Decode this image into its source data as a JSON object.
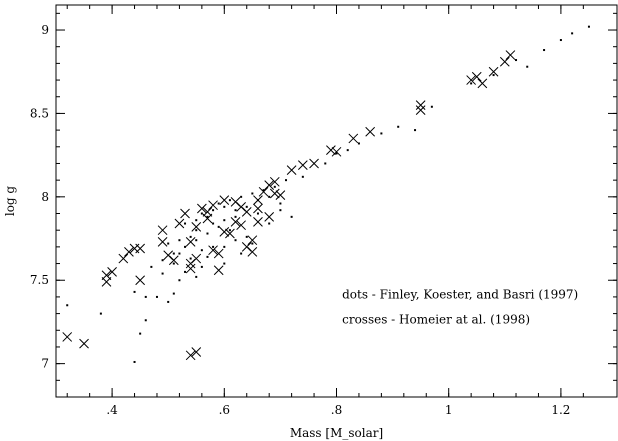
{
  "chart_data": {
    "type": "scatter",
    "title": "",
    "xlabel": "Mass [M_solar]",
    "ylabel": "log g",
    "xlim": [
      0.3,
      1.3
    ],
    "ylim": [
      6.8,
      9.15
    ],
    "xticks": [
      0.4,
      0.6,
      0.8,
      1.0,
      1.2
    ],
    "xtick_labels": [
      ".4",
      ".6",
      ".8",
      "1",
      "1.2"
    ],
    "yticks": [
      7.0,
      7.5,
      8.0,
      8.5,
      9.0
    ],
    "ytick_labels": [
      "7",
      "7.5",
      "8",
      "8.5",
      "9"
    ],
    "grid": false,
    "annotations": [
      {
        "text": "dots - Finley, Koester, and Basri (1997)",
        "x": 0.81,
        "y": 7.39
      },
      {
        "text": "crosses - Homeier at al. (1998)",
        "x": 0.81,
        "y": 7.24
      }
    ],
    "series": [
      {
        "marker": "dot",
        "points": [
          [
            0.32,
            7.35
          ],
          [
            0.38,
            7.3
          ],
          [
            0.44,
            7.01
          ],
          [
            0.45,
            7.18
          ],
          [
            0.46,
            7.26
          ],
          [
            0.44,
            7.43
          ],
          [
            0.46,
            7.4
          ],
          [
            0.48,
            7.4
          ],
          [
            0.5,
            7.37
          ],
          [
            0.51,
            7.42
          ],
          [
            0.52,
            7.5
          ],
          [
            0.53,
            7.55
          ],
          [
            0.55,
            7.52
          ],
          [
            0.47,
            7.58
          ],
          [
            0.49,
            7.62
          ],
          [
            0.51,
            7.6
          ],
          [
            0.52,
            7.66
          ],
          [
            0.54,
            7.63
          ],
          [
            0.56,
            7.68
          ],
          [
            0.58,
            7.7
          ],
          [
            0.5,
            7.72
          ],
          [
            0.52,
            7.74
          ],
          [
            0.54,
            7.76
          ],
          [
            0.55,
            7.8
          ],
          [
            0.57,
            7.78
          ],
          [
            0.59,
            7.82
          ],
          [
            0.61,
            7.8
          ],
          [
            0.53,
            7.84
          ],
          [
            0.55,
            7.86
          ],
          [
            0.57,
            7.88
          ],
          [
            0.58,
            7.84
          ],
          [
            0.6,
            7.86
          ],
          [
            0.62,
            7.88
          ],
          [
            0.56,
            7.9
          ],
          [
            0.58,
            7.92
          ],
          [
            0.6,
            7.94
          ],
          [
            0.62,
            7.92
          ],
          [
            0.64,
            7.94
          ],
          [
            0.59,
            7.96
          ],
          [
            0.61,
            7.98
          ],
          [
            0.63,
            8.0
          ],
          [
            0.65,
            8.02
          ],
          [
            0.67,
            8.04
          ],
          [
            0.66,
            7.98
          ],
          [
            0.68,
            8.0
          ],
          [
            0.7,
            7.96
          ],
          [
            0.69,
            8.06
          ],
          [
            0.71,
            8.1
          ],
          [
            0.72,
            7.88
          ],
          [
            0.74,
            8.12
          ],
          [
            0.6,
            7.7
          ],
          [
            0.62,
            7.74
          ],
          [
            0.64,
            7.76
          ],
          [
            0.57,
            7.64
          ],
          [
            0.6,
            7.6
          ],
          [
            0.63,
            7.66
          ],
          [
            0.65,
            7.72
          ],
          [
            0.53,
            7.7
          ],
          [
            0.55,
            7.74
          ],
          [
            0.56,
            7.58
          ],
          [
            0.49,
            7.54
          ],
          [
            0.51,
            7.66
          ],
          [
            0.66,
            7.9
          ],
          [
            0.68,
            7.84
          ],
          [
            0.7,
            7.92
          ],
          [
            0.78,
            8.2
          ],
          [
            0.8,
            8.26
          ],
          [
            0.82,
            8.28
          ],
          [
            0.84,
            8.32
          ],
          [
            0.88,
            8.38
          ],
          [
            0.91,
            8.42
          ],
          [
            0.94,
            8.4
          ],
          [
            0.97,
            8.54
          ],
          [
            1.04,
            8.68
          ],
          [
            1.08,
            8.73
          ],
          [
            1.12,
            8.82
          ],
          [
            1.14,
            8.78
          ],
          [
            1.17,
            8.88
          ],
          [
            1.2,
            8.94
          ],
          [
            1.22,
            8.98
          ],
          [
            1.25,
            9.02
          ]
        ]
      },
      {
        "marker": "cross",
        "points": [
          [
            0.32,
            7.16
          ],
          [
            0.35,
            7.12
          ],
          [
            0.39,
            7.49
          ],
          [
            0.39,
            7.53
          ],
          [
            0.4,
            7.55
          ],
          [
            0.42,
            7.63
          ],
          [
            0.43,
            7.67
          ],
          [
            0.45,
            7.69
          ],
          [
            0.44,
            7.69
          ],
          [
            0.45,
            7.5
          ],
          [
            0.49,
            7.8
          ],
          [
            0.49,
            7.73
          ],
          [
            0.5,
            7.65
          ],
          [
            0.51,
            7.62
          ],
          [
            0.52,
            7.84
          ],
          [
            0.53,
            7.9
          ],
          [
            0.54,
            7.73
          ],
          [
            0.54,
            7.6
          ],
          [
            0.54,
            7.57
          ],
          [
            0.55,
            7.63
          ],
          [
            0.56,
            7.93
          ],
          [
            0.55,
            7.82
          ],
          [
            0.57,
            7.87
          ],
          [
            0.58,
            7.68
          ],
          [
            0.59,
            7.66
          ],
          [
            0.59,
            7.56
          ],
          [
            0.58,
            7.95
          ],
          [
            0.6,
            7.98
          ],
          [
            0.6,
            7.79
          ],
          [
            0.62,
            7.97
          ],
          [
            0.62,
            7.85
          ],
          [
            0.63,
            7.83
          ],
          [
            0.64,
            7.7
          ],
          [
            0.65,
            7.74
          ],
          [
            0.63,
            7.94
          ],
          [
            0.64,
            7.91
          ],
          [
            0.66,
            7.93
          ],
          [
            0.66,
            7.98
          ],
          [
            0.67,
            8.03
          ],
          [
            0.68,
            8.07
          ],
          [
            0.69,
            8.02
          ],
          [
            0.69,
            8.09
          ],
          [
            0.7,
            8.01
          ],
          [
            0.66,
            7.85
          ],
          [
            0.65,
            7.67
          ],
          [
            0.68,
            7.88
          ],
          [
            0.74,
            8.19
          ],
          [
            0.72,
            8.16
          ],
          [
            0.76,
            8.2
          ],
          [
            0.79,
            8.28
          ],
          [
            0.8,
            8.27
          ],
          [
            0.83,
            8.35
          ],
          [
            0.86,
            8.39
          ],
          [
            0.95,
            8.55
          ],
          [
            0.95,
            8.52
          ],
          [
            1.04,
            8.7
          ],
          [
            1.05,
            8.72
          ],
          [
            1.06,
            8.68
          ],
          [
            1.08,
            8.75
          ],
          [
            1.1,
            8.81
          ],
          [
            1.11,
            8.85
          ],
          [
            0.54,
            7.05
          ],
          [
            0.55,
            7.07
          ],
          [
            0.57,
            7.91
          ],
          [
            0.61,
            7.78
          ]
        ]
      }
    ]
  }
}
